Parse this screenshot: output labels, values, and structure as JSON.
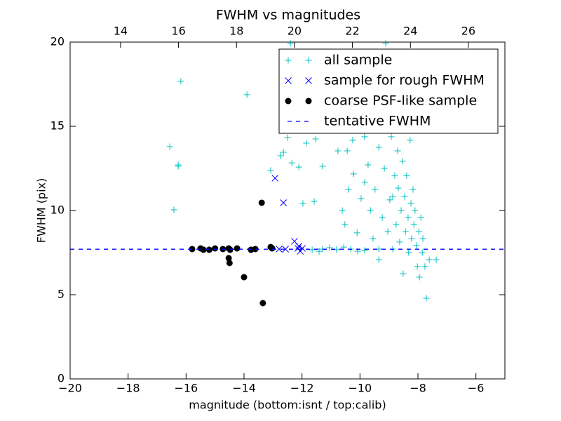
{
  "chart_data": {
    "type": "scatter",
    "title": "FWHM vs magnitudes",
    "xlabel": "magnitude (bottom:isnt / top:calib)",
    "ylabel": "FWHM (pix)",
    "xlim": [
      -20,
      -5
    ],
    "ylim": [
      0,
      20
    ],
    "xticks": [
      {
        "value": -20,
        "label": "−20"
      },
      {
        "value": -18,
        "label": "−18"
      },
      {
        "value": -16,
        "label": "−16"
      },
      {
        "value": -14,
        "label": "−14"
      },
      {
        "value": -12,
        "label": "−12"
      },
      {
        "value": -10,
        "label": "−10"
      },
      {
        "value": -8,
        "label": "−8"
      },
      {
        "value": -6,
        "label": "−6"
      }
    ],
    "yticks": [
      0,
      5,
      10,
      15,
      20
    ],
    "x2lim": [
      12.26,
      27.26
    ],
    "x2ticks": [
      14,
      16,
      18,
      20,
      22,
      24,
      26
    ],
    "legend": "upper right",
    "series": [
      {
        "name": "all sample",
        "color": "#00bfbf",
        "marker": "+",
        "x": [
          -16.18,
          -13.9,
          -16.56,
          -16.27,
          -16.27,
          -16.42,
          -13.08,
          -12.5,
          -12.64,
          -12.74,
          -12.35,
          -12.11,
          -11.85,
          -11.53,
          -11.29,
          -11.58,
          -11.97,
          -12.4,
          -10.76,
          -10.61,
          -10.52,
          -10.4,
          -10.25,
          -10.22,
          -10.1,
          -9.96,
          -9.84,
          -9.72,
          -9.64,
          -9.55,
          -9.48,
          -9.35,
          -9.35,
          -9.23,
          -9.16,
          -9.11,
          -9.04,
          -8.97,
          -8.92,
          -8.87,
          -8.8,
          -8.75,
          -8.7,
          -8.68,
          -8.63,
          -8.58,
          -8.53,
          -8.51,
          -8.46,
          -8.43,
          -8.39,
          -8.34,
          -8.32,
          -8.27,
          -8.24,
          -8.22,
          -8.17,
          -8.14,
          -8.1,
          -8.05,
          -8.02,
          -7.97,
          -7.95,
          -7.9,
          -7.85,
          -7.83,
          -7.76,
          -7.71,
          -7.61,
          -7.37,
          -11.05,
          -10.81,
          -10.32,
          -9.84,
          -11.29,
          -11.65,
          -11.41,
          -10.56,
          -10.08,
          -9.35,
          -8.87,
          -8.51,
          -8.39,
          -8.63,
          -9.84,
          -10.44,
          -9.23
        ],
        "y": [
          17.67,
          16.88,
          13.79,
          12.63,
          12.71,
          10.04,
          12.38,
          14.33,
          13.46,
          13.25,
          12.83,
          12.58,
          14.0,
          14.25,
          12.63,
          10.54,
          10.42,
          19.92,
          13.54,
          10.0,
          9.17,
          11.25,
          14.17,
          12.17,
          8.67,
          10.71,
          11.67,
          12.71,
          10.0,
          8.33,
          11.25,
          13.75,
          7.08,
          9.58,
          12.5,
          19.92,
          8.75,
          10.63,
          14.38,
          7.71,
          12.08,
          9.17,
          13.54,
          11.33,
          8.13,
          10.0,
          12.92,
          6.25,
          10.83,
          8.75,
          12.08,
          9.58,
          7.5,
          14.17,
          10.42,
          8.33,
          11.25,
          9.17,
          10.0,
          7.92,
          6.67,
          8.75,
          6.04,
          9.58,
          7.5,
          8.33,
          6.67,
          4.79,
          7.08,
          7.08,
          7.79,
          7.67,
          7.71,
          7.63,
          7.71,
          7.67,
          7.58,
          7.83,
          7.58,
          7.71,
          10.83,
          15.0,
          16.25,
          17.5,
          14.38,
          13.54,
          15.21
        ]
      },
      {
        "name": "sample for rough FWHM",
        "color": "#0000ff",
        "marker": "x",
        "x": [
          -12.93,
          -12.64,
          -12.79,
          -12.57,
          -12.26,
          -12.14,
          -12.06,
          -11.99,
          -12.11
        ],
        "y": [
          11.92,
          10.46,
          7.71,
          7.71,
          8.17,
          7.75,
          7.58,
          7.75,
          7.88
        ]
      },
      {
        "name": "coarse PSF-like sample",
        "color": "#000000",
        "marker": "o",
        "x": [
          -15.79,
          -15.5,
          -15.4,
          -15.2,
          -15.0,
          -14.73,
          -14.53,
          -14.53,
          -14.5,
          -14.48,
          -14.24,
          -14.0,
          -13.76,
          -13.61,
          -13.39,
          -13.35,
          -13.08,
          -13.03
        ],
        "y": [
          7.71,
          7.75,
          7.67,
          7.67,
          7.75,
          7.71,
          7.75,
          7.17,
          6.88,
          7.67,
          7.75,
          6.04,
          7.67,
          7.71,
          10.46,
          4.5,
          7.83,
          7.75
        ]
      },
      {
        "name": "tentative FWHM",
        "color": "#0000ff",
        "linestyle": "dashed",
        "y": 7.7
      }
    ]
  }
}
